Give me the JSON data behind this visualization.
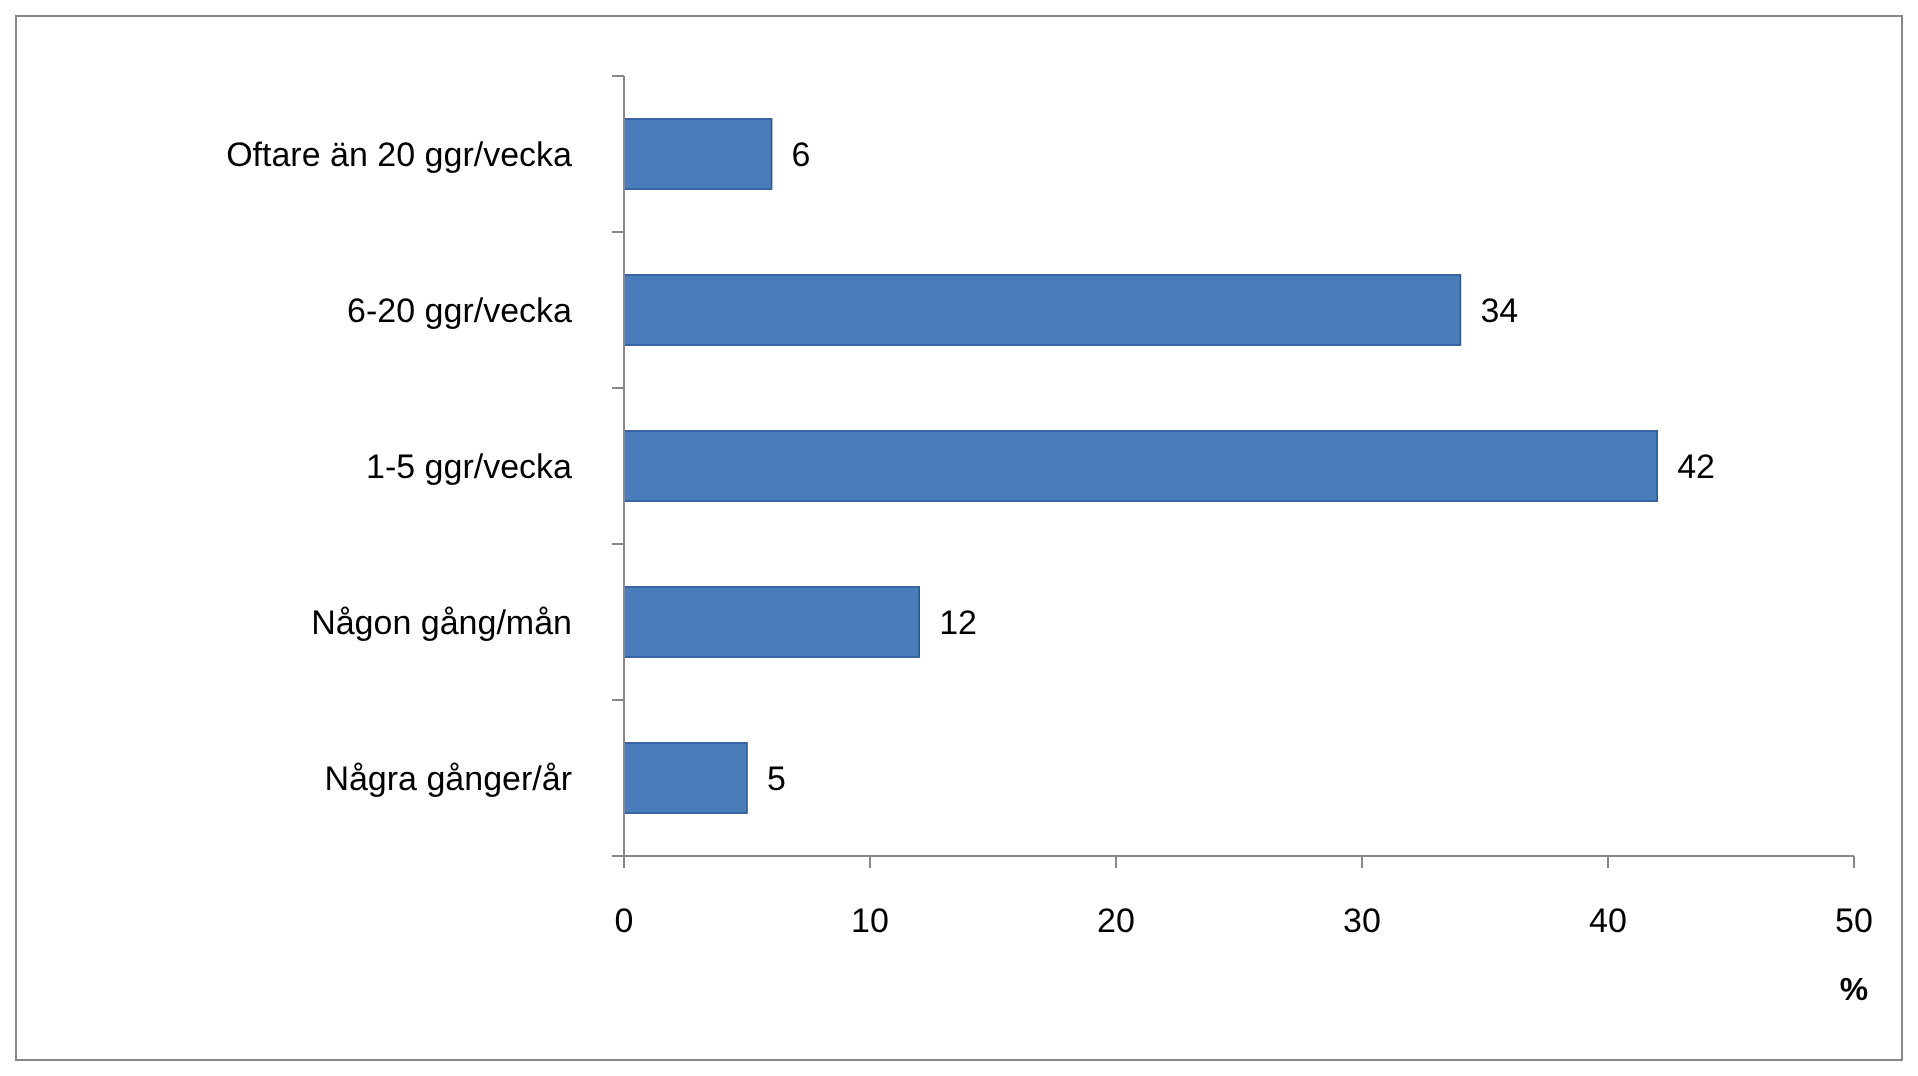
{
  "chart_data": {
    "type": "bar",
    "orientation": "horizontal",
    "xlabel": "%",
    "categories": [
      "Oftare än 20 ggr/vecka",
      "6-20 ggr/vecka",
      "1-5 ggr/vecka",
      "Någon gång/mån",
      "Några gånger/år"
    ],
    "values": [
      6,
      34,
      42,
      12,
      5
    ],
    "color": "#4a7ebb",
    "xlim": [
      0,
      50
    ],
    "xticks": [
      0,
      10,
      20,
      30,
      40,
      50
    ],
    "data_labels": true
  }
}
